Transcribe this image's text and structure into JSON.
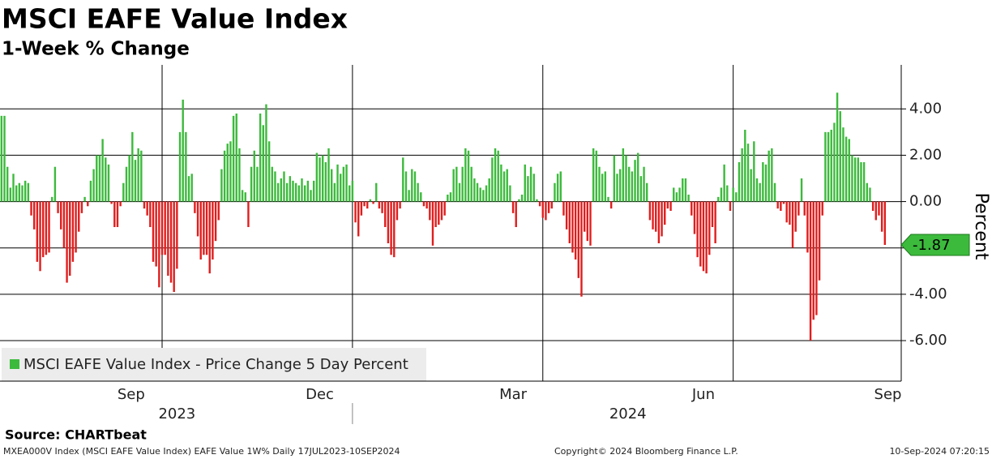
{
  "chart_data": {
    "type": "bar",
    "title": "MSCI EAFE Value Index",
    "subtitle": "1-Week % Change",
    "y_axis_label": "Percent",
    "legend_label": "MSCI EAFE Value Index - Price Change 5 Day Percent",
    "source": "Source: CHARTbeat",
    "footer_left": "MXEA000V Index (MSCI EAFE Value Index) EAFE Value 1W%  Daily 17JUL2023-10SEP2024",
    "footer_center": "Copyright© 2024 Bloomberg Finance L.P.",
    "footer_right": "10-Sep-2024 07:20:15",
    "positive_color": "#3cba3c",
    "negative_color": "#e11d1d",
    "grid": true,
    "xlim": [
      -0.5,
      302.5
    ],
    "ylim": [
      -7.75,
      5.9
    ],
    "yticks": [
      {
        "value": 4,
        "label": "4.00"
      },
      {
        "value": 2,
        "label": "2.00"
      },
      {
        "value": 0,
        "label": "0.00"
      },
      {
        "value": -2,
        "label": "-2.00"
      },
      {
        "value": -4,
        "label": "-4.00"
      },
      {
        "value": -6,
        "label": "-6.00"
      }
    ],
    "xticks": [
      {
        "value": 43.6,
        "label": "Sep"
      },
      {
        "value": 107,
        "label": "Dec"
      },
      {
        "value": 172,
        "label": "Mar"
      },
      {
        "value": 236,
        "label": "Jun"
      },
      {
        "value": 298,
        "label": "Sep"
      }
    ],
    "x_grid": [
      54,
      118,
      182,
      246
    ],
    "year_ticks": [
      {
        "value": 59,
        "label": "2023"
      },
      {
        "value": 210.6,
        "label": "2024"
      }
    ],
    "year_separator": 118,
    "last_value": {
      "value": -1.87,
      "label": "-1.87"
    },
    "values": [
      3.7,
      3.7,
      1.5,
      0.6,
      1.2,
      0.7,
      0.8,
      0.7,
      0.9,
      0.8,
      -0.6,
      -1.2,
      -2.6,
      -3.0,
      -2.4,
      -2.3,
      -2.2,
      0.2,
      1.5,
      -0.5,
      -1.2,
      -2.0,
      -3.5,
      -3.2,
      -2.6,
      -2.2,
      -1.3,
      -0.5,
      0.2,
      -0.2,
      0.9,
      1.4,
      2.0,
      2.0,
      2.7,
      1.9,
      1.6,
      -0.1,
      -1.1,
      -1.1,
      -0.2,
      0.8,
      1.5,
      2.0,
      3.0,
      1.8,
      2.3,
      2.2,
      -0.3,
      -0.6,
      -1.1,
      -2.6,
      -2.8,
      -3.7,
      -2.3,
      -2.3,
      -3.2,
      -3.5,
      -3.9,
      -2.9,
      3.0,
      4.4,
      3.0,
      1.1,
      1.2,
      -0.5,
      -1.5,
      -2.5,
      -2.3,
      -2.3,
      -3.1,
      -2.5,
      -1.7,
      -0.8,
      1.4,
      2.2,
      2.5,
      2.6,
      3.7,
      3.8,
      2.3,
      0.5,
      0.4,
      -1.1,
      1.5,
      2.2,
      1.5,
      3.8,
      3.3,
      4.2,
      2.6,
      1.5,
      1.3,
      0.8,
      1.0,
      1.3,
      0.8,
      1.1,
      0.9,
      0.8,
      0.7,
      1.0,
      0.7,
      0.9,
      0.5,
      0.9,
      2.1,
      1.9,
      2.0,
      1.7,
      2.3,
      1.4,
      0.8,
      1.6,
      1.2,
      1.5,
      1.6,
      0.7,
      0.9,
      -0.9,
      -1.5,
      -0.6,
      -0.2,
      -0.3,
      0.1,
      -0.1,
      0.8,
      -0.3,
      -0.5,
      -1.1,
      -1.8,
      -2.3,
      -2.4,
      -0.8,
      -0.3,
      1.9,
      1.3,
      0.5,
      1.4,
      1.3,
      0.8,
      0.4,
      -0.2,
      -0.3,
      -0.8,
      -1.9,
      -1.1,
      -1.0,
      -0.8,
      -0.6,
      0.3,
      0.4,
      1.4,
      1.5,
      0.8,
      1.5,
      2.3,
      2.2,
      1.5,
      1.0,
      0.8,
      0.6,
      0.5,
      0.7,
      1.0,
      1.9,
      2.3,
      2.2,
      1.6,
      1.3,
      1.4,
      0.7,
      -0.5,
      -1.1,
      0.1,
      0.3,
      1.6,
      1.1,
      1.5,
      1.2,
      0.1,
      -0.2,
      -0.7,
      -0.8,
      -0.5,
      -0.3,
      0.8,
      1.2,
      1.3,
      -0.6,
      -1.2,
      -1.8,
      -2.2,
      -2.5,
      -3.3,
      -4.1,
      -1.3,
      -1.7,
      -1.9,
      2.3,
      2.2,
      1.5,
      1.2,
      1.3,
      0.2,
      -0.3,
      2.0,
      1.2,
      1.4,
      2.3,
      2.0,
      1.5,
      1.3,
      1.8,
      2.1,
      1.1,
      1.5,
      0.8,
      -0.8,
      -1.2,
      -1.3,
      -1.8,
      -1.5,
      -1.0,
      -0.3,
      -0.4,
      0.6,
      0.4,
      0.6,
      1.0,
      1.0,
      0.3,
      -0.6,
      -1.4,
      -2.4,
      -2.8,
      -3.0,
      -3.1,
      -2.3,
      -1.1,
      -1.8,
      0.2,
      0.6,
      1.6,
      0.7,
      -0.4,
      0.6,
      0.4,
      1.7,
      2.3,
      3.1,
      2.5,
      1.4,
      2.6,
      1.0,
      0.8,
      1.7,
      1.6,
      2.2,
      2.3,
      0.8,
      -0.3,
      -0.4,
      -0.1,
      -0.9,
      -1.0,
      -2.0,
      -1.3,
      -0.6,
      1.0,
      -0.6,
      -2.2,
      -6.0,
      -5.1,
      -4.9,
      -3.4,
      -0.6,
      3.0,
      3.0,
      3.1,
      3.4,
      4.7,
      3.9,
      3.2,
      2.8,
      2.7,
      2.0,
      1.9,
      1.9,
      1.7,
      1.7,
      0.8,
      0.6,
      -0.4,
      -0.8,
      -0.6,
      -1.3,
      -1.87
    ]
  }
}
